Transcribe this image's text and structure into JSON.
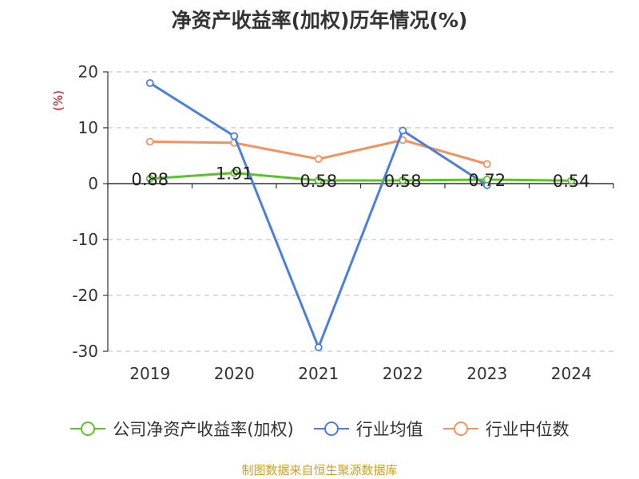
{
  "chart_data": {
    "type": "line",
    "title": "净资产收益率(加权)历年情况(%)",
    "ylabel": "(%)",
    "categories": [
      "2019",
      "2020",
      "2021",
      "2022",
      "2023",
      "2024"
    ],
    "ylim": [
      -30,
      20
    ],
    "yticks": [
      20,
      10,
      0,
      -10,
      -20,
      -30
    ],
    "grid": true,
    "legend_position": "bottom",
    "series": [
      {
        "name": "公司净资产收益率(加权)",
        "color": "#5cc12a",
        "values": [
          0.88,
          1.91,
          0.58,
          0.58,
          0.72,
          0.54
        ],
        "labels": [
          "0.88",
          "1.91",
          "0.58",
          "0.58",
          "0.72",
          "0.54"
        ]
      },
      {
        "name": "行业均值",
        "color": "#4a7fdc",
        "values": [
          18.0,
          8.5,
          -29.3,
          9.5,
          -0.3,
          null
        ]
      },
      {
        "name": "行业中位数",
        "color": "#f4925a",
        "values": [
          7.5,
          7.3,
          4.4,
          7.8,
          3.5,
          null
        ]
      }
    ],
    "source": "制图数据来自恒生聚源数据库"
  }
}
